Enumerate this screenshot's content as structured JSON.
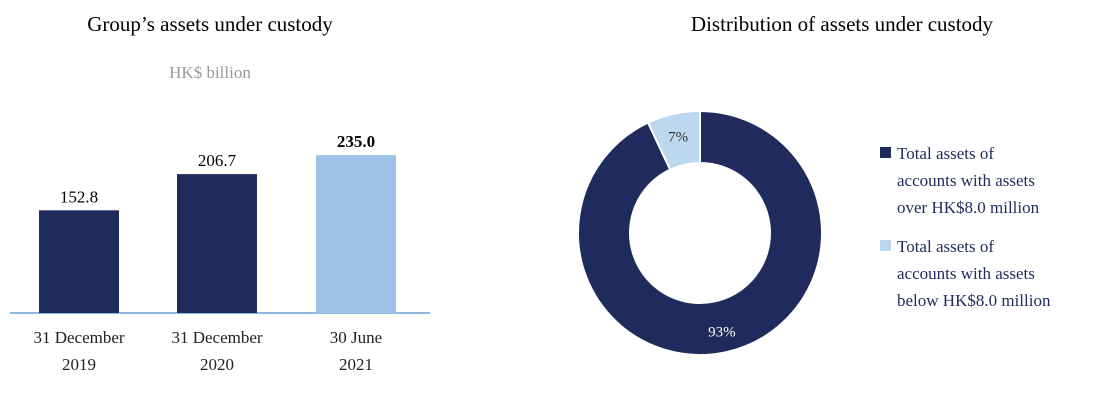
{
  "chart_data": [
    {
      "type": "bar",
      "title": "Group’s assets under custody",
      "subtitle": "HK$ billion",
      "categories": [
        "31 December\n2019",
        "31 December\n2020",
        "30 June\n2021"
      ],
      "values": [
        152.8,
        206.7,
        235.0
      ],
      "value_labels": [
        "152.8",
        "206.7",
        "235.0"
      ],
      "colors": [
        "#1f2b5c",
        "#1f2b5c",
        "#9fc3e6"
      ]
    },
    {
      "type": "pie",
      "title": "Distribution of assets under custody",
      "categories": [
        "Total assets of\naccounts with assets\nover HK$8.0 million",
        "Total assets of\naccounts with assets\nbelow HK$8.0 million"
      ],
      "values": [
        93,
        7
      ],
      "value_labels": [
        "93%",
        "7%"
      ],
      "colors": [
        "#1f2b5c",
        "#bdd7ee"
      ]
    }
  ]
}
